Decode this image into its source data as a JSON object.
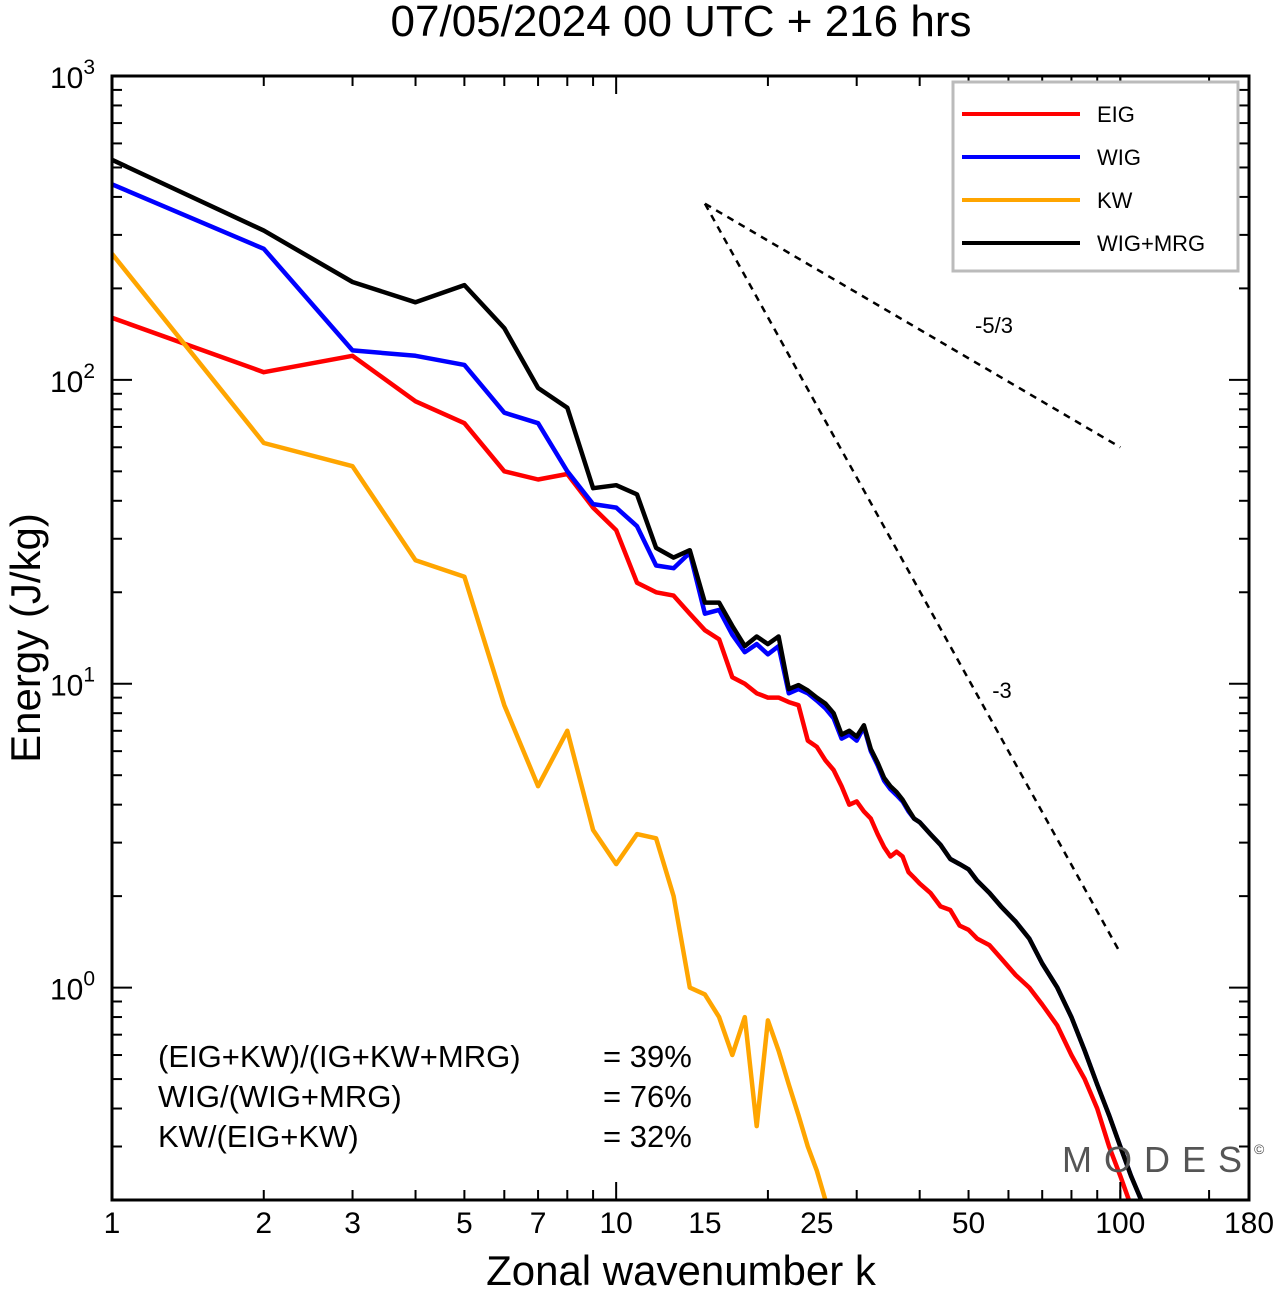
{
  "chart_data": {
    "type": "line",
    "title": "07/05/2024  00 UTC  + 216 hrs",
    "xlabel": "Zonal wavenumber k",
    "ylabel": "Energy (J/kg)",
    "xscale": "log",
    "yscale": "log",
    "xlim": [
      1,
      180
    ],
    "ylim": [
      0.2,
      1000
    ],
    "x_ticks": [
      1,
      2,
      3,
      5,
      7,
      10,
      15,
      25,
      50,
      100,
      180
    ],
    "x_tick_labels": [
      "1",
      "2",
      "3",
      "5",
      "7",
      "10",
      "15",
      "25",
      "50",
      "100",
      "180"
    ],
    "y_ticks": [
      {
        "value": 1,
        "base": "10",
        "exp": "0"
      },
      {
        "value": 10,
        "base": "10",
        "exp": "1"
      },
      {
        "value": 100,
        "base": "10",
        "exp": "2"
      },
      {
        "value": 1000,
        "base": "10",
        "exp": "3"
      }
    ],
    "grid": false,
    "legend_position": "top-right",
    "series": [
      {
        "name": "EIG",
        "color": "#ff0000",
        "points": [
          [
            1,
            160
          ],
          [
            2,
            106
          ],
          [
            3,
            120
          ],
          [
            4,
            85
          ],
          [
            5,
            72
          ],
          [
            6,
            50
          ],
          [
            7,
            47
          ],
          [
            8,
            49
          ],
          [
            9,
            38
          ],
          [
            10,
            32
          ],
          [
            11,
            21.5
          ],
          [
            12,
            20
          ],
          [
            13,
            19.5
          ],
          [
            14,
            17
          ],
          [
            15,
            15
          ],
          [
            16,
            14
          ],
          [
            17,
            10.5
          ],
          [
            18,
            10
          ],
          [
            19,
            9.3
          ],
          [
            20,
            9
          ],
          [
            21,
            9
          ],
          [
            22,
            8.7
          ],
          [
            23,
            8.5
          ],
          [
            24,
            6.5
          ],
          [
            25,
            6.2
          ],
          [
            26,
            5.6
          ],
          [
            27,
            5.2
          ],
          [
            28,
            4.6
          ],
          [
            29,
            4.0
          ],
          [
            30,
            4.1
          ],
          [
            31,
            3.8
          ],
          [
            32,
            3.6
          ],
          [
            33,
            3.2
          ],
          [
            34,
            2.9
          ],
          [
            35,
            2.7
          ],
          [
            36,
            2.8
          ],
          [
            37,
            2.7
          ],
          [
            38,
            2.4
          ],
          [
            39,
            2.3
          ],
          [
            40,
            2.2
          ],
          [
            42,
            2.05
          ],
          [
            44,
            1.85
          ],
          [
            46,
            1.8
          ],
          [
            48,
            1.6
          ],
          [
            50,
            1.55
          ],
          [
            52,
            1.45
          ],
          [
            55,
            1.38
          ],
          [
            58,
            1.25
          ],
          [
            62,
            1.1
          ],
          [
            66,
            1.0
          ],
          [
            70,
            0.88
          ],
          [
            75,
            0.75
          ],
          [
            80,
            0.6
          ],
          [
            85,
            0.5
          ],
          [
            90,
            0.4
          ],
          [
            95,
            0.3
          ],
          [
            100,
            0.24
          ],
          [
            104,
            0.2
          ]
        ]
      },
      {
        "name": "WIG",
        "color": "#0000ff",
        "points": [
          [
            1,
            440
          ],
          [
            2,
            270
          ],
          [
            3,
            125
          ],
          [
            4,
            120
          ],
          [
            5,
            112
          ],
          [
            6,
            78
          ],
          [
            7,
            72
          ],
          [
            8,
            50
          ],
          [
            9,
            39
          ],
          [
            10,
            38
          ],
          [
            11,
            33
          ],
          [
            12,
            24.5
          ],
          [
            13,
            24
          ],
          [
            14,
            27
          ],
          [
            15,
            17
          ],
          [
            16,
            17.5
          ],
          [
            17,
            14.5
          ],
          [
            18,
            12.7
          ],
          [
            19,
            13.5
          ],
          [
            20,
            12.5
          ],
          [
            21,
            13.3
          ],
          [
            22,
            9.3
          ],
          [
            23,
            9.6
          ],
          [
            24,
            9.3
          ],
          [
            25,
            8.8
          ],
          [
            26,
            8.3
          ],
          [
            27,
            7.7
          ],
          [
            28,
            6.6
          ],
          [
            29,
            6.8
          ],
          [
            30,
            6.5
          ],
          [
            31,
            7.2
          ],
          [
            32,
            6.0
          ],
          [
            33,
            5.4
          ],
          [
            34,
            4.8
          ],
          [
            35,
            4.5
          ],
          [
            36,
            4.3
          ],
          [
            37,
            4.1
          ],
          [
            38,
            3.8
          ],
          [
            39,
            3.6
          ],
          [
            40,
            3.5
          ],
          [
            42,
            3.2
          ],
          [
            44,
            2.95
          ],
          [
            46,
            2.65
          ],
          [
            48,
            2.55
          ],
          [
            50,
            2.45
          ],
          [
            52,
            2.25
          ],
          [
            55,
            2.05
          ],
          [
            58,
            1.85
          ],
          [
            62,
            1.65
          ],
          [
            66,
            1.45
          ],
          [
            70,
            1.2
          ],
          [
            75,
            1.0
          ],
          [
            80,
            0.8
          ],
          [
            85,
            0.62
          ],
          [
            90,
            0.48
          ],
          [
            95,
            0.38
          ],
          [
            100,
            0.3
          ],
          [
            105,
            0.24
          ],
          [
            110,
            0.2
          ]
        ]
      },
      {
        "name": "KW",
        "color": "#ffa500",
        "points": [
          [
            1,
            260
          ],
          [
            2,
            62
          ],
          [
            3,
            52
          ],
          [
            4,
            25.5
          ],
          [
            5,
            22.5
          ],
          [
            6,
            8.5
          ],
          [
            7,
            4.6
          ],
          [
            8,
            7.0
          ],
          [
            9,
            3.3
          ],
          [
            10,
            2.55
          ],
          [
            11,
            3.2
          ],
          [
            12,
            3.1
          ],
          [
            13,
            2.0
          ],
          [
            14,
            1.0
          ],
          [
            15,
            0.95
          ],
          [
            16,
            0.8
          ],
          [
            17,
            0.6
          ],
          [
            18,
            0.8
          ],
          [
            19,
            0.35
          ],
          [
            20,
            0.78
          ],
          [
            21,
            0.62
          ],
          [
            22,
            0.48
          ],
          [
            23,
            0.38
          ],
          [
            24,
            0.3
          ],
          [
            25,
            0.25
          ],
          [
            26,
            0.2
          ]
        ]
      },
      {
        "name": "WIG+MRG",
        "color": "#000000",
        "points": [
          [
            1,
            530
          ],
          [
            2,
            310
          ],
          [
            3,
            210
          ],
          [
            4,
            180
          ],
          [
            5,
            205
          ],
          [
            6,
            148
          ],
          [
            7,
            94
          ],
          [
            8,
            81
          ],
          [
            9,
            44
          ],
          [
            10,
            45
          ],
          [
            11,
            42
          ],
          [
            12,
            28
          ],
          [
            13,
            26
          ],
          [
            14,
            27.5
          ],
          [
            15,
            18.5
          ],
          [
            16,
            18.5
          ],
          [
            17,
            15.5
          ],
          [
            18,
            13.3
          ],
          [
            19,
            14.3
          ],
          [
            20,
            13.5
          ],
          [
            21,
            14.3
          ],
          [
            22,
            9.6
          ],
          [
            23,
            9.9
          ],
          [
            24,
            9.5
          ],
          [
            25,
            9.0
          ],
          [
            26,
            8.6
          ],
          [
            27,
            8.0
          ],
          [
            28,
            6.8
          ],
          [
            29,
            7.0
          ],
          [
            30,
            6.7
          ],
          [
            31,
            7.3
          ],
          [
            32,
            6.1
          ],
          [
            33,
            5.5
          ],
          [
            34,
            4.9
          ],
          [
            35,
            4.6
          ],
          [
            36,
            4.4
          ],
          [
            37,
            4.15
          ],
          [
            38,
            3.85
          ],
          [
            39,
            3.6
          ],
          [
            40,
            3.5
          ],
          [
            42,
            3.2
          ],
          [
            44,
            2.95
          ],
          [
            46,
            2.65
          ],
          [
            48,
            2.55
          ],
          [
            50,
            2.45
          ],
          [
            52,
            2.25
          ],
          [
            55,
            2.05
          ],
          [
            58,
            1.85
          ],
          [
            62,
            1.65
          ],
          [
            66,
            1.45
          ],
          [
            70,
            1.2
          ],
          [
            75,
            1.0
          ],
          [
            80,
            0.8
          ],
          [
            85,
            0.62
          ],
          [
            90,
            0.48
          ],
          [
            95,
            0.38
          ],
          [
            100,
            0.3
          ],
          [
            105,
            0.24
          ],
          [
            110,
            0.2
          ]
        ]
      }
    ],
    "reference_slopes": [
      {
        "label": "-5/3",
        "from": [
          15,
          380
        ],
        "to": [
          100,
          60
        ]
      },
      {
        "label": "-3",
        "from": [
          15,
          380
        ],
        "to": [
          100,
          1.3
        ]
      }
    ],
    "annotations": [
      {
        "label": "(EIG+KW)/(IG+KW+MRG)",
        "value": "= 39%"
      },
      {
        "label": "WIG/(WIG+MRG)",
        "value": "= 76%"
      },
      {
        "label": "KW/(EIG+KW)",
        "value": "= 32%"
      }
    ],
    "watermark": "MODES",
    "watermark_mark": "©"
  }
}
